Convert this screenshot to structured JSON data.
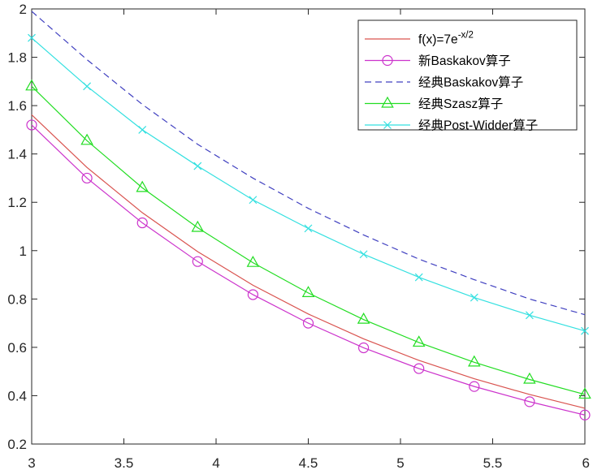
{
  "chart_data": {
    "type": "line",
    "title": "",
    "xlabel": "",
    "ylabel": "",
    "xlim": [
      3,
      6
    ],
    "ylim": [
      0.2,
      2
    ],
    "xticks": [
      "3",
      "3.5",
      "4",
      "4.5",
      "5",
      "5.5",
      "6"
    ],
    "yticks": [
      "0.2",
      "0.4",
      "0.6",
      "0.8",
      "1",
      "1.2",
      "1.4",
      "1.6",
      "1.8",
      "2"
    ],
    "grid": false,
    "legend_position": "top-right",
    "series": [
      {
        "name": "f(x)=7e",
        "name_superscript": "-x/2",
        "color": "#d9534f",
        "style": "solid",
        "marker": "none",
        "x": [
          3,
          3.3,
          3.6,
          3.9,
          4.2,
          4.5,
          4.8,
          5.1,
          5.4,
          5.7,
          6
        ],
        "y": [
          1.562,
          1.344,
          1.157,
          0.996,
          0.857,
          0.738,
          0.635,
          0.546,
          0.47,
          0.405,
          0.348
        ]
      },
      {
        "name": "新Baskakov算子",
        "color": "#cc33cc",
        "style": "solid",
        "marker": "circle",
        "x": [
          3,
          3.3,
          3.6,
          3.9,
          4.2,
          4.5,
          4.8,
          5.1,
          5.4,
          5.7,
          6
        ],
        "y": [
          1.52,
          1.3,
          1.115,
          0.955,
          0.818,
          0.7,
          0.598,
          0.512,
          0.438,
          0.375,
          0.32
        ]
      },
      {
        "name": "经典Baskakov算子",
        "color": "#4040c0",
        "style": "dashed",
        "marker": "none",
        "x": [
          3,
          3.3,
          3.6,
          3.9,
          4.2,
          4.5,
          4.8,
          5.1,
          5.4,
          5.7,
          6
        ],
        "y": [
          1.99,
          1.79,
          1.605,
          1.44,
          1.3,
          1.175,
          1.065,
          0.965,
          0.88,
          0.8,
          0.735
        ]
      },
      {
        "name": "经典Szasz算子",
        "color": "#22dd22",
        "style": "solid",
        "marker": "triangle",
        "x": [
          3,
          3.3,
          3.6,
          3.9,
          4.2,
          4.5,
          4.8,
          5.1,
          5.4,
          5.7,
          6
        ],
        "y": [
          1.68,
          1.455,
          1.26,
          1.095,
          0.95,
          0.825,
          0.715,
          0.62,
          0.538,
          0.467,
          0.405
        ]
      },
      {
        "name": "经典Post-Widder算子",
        "color": "#33e0e0",
        "style": "solid",
        "marker": "x",
        "x": [
          3,
          3.3,
          3.6,
          3.9,
          4.2,
          4.5,
          4.8,
          5.1,
          5.4,
          5.7,
          6
        ],
        "y": [
          1.88,
          1.68,
          1.5,
          1.35,
          1.21,
          1.092,
          0.985,
          0.89,
          0.806,
          0.733,
          0.668
        ]
      }
    ]
  }
}
